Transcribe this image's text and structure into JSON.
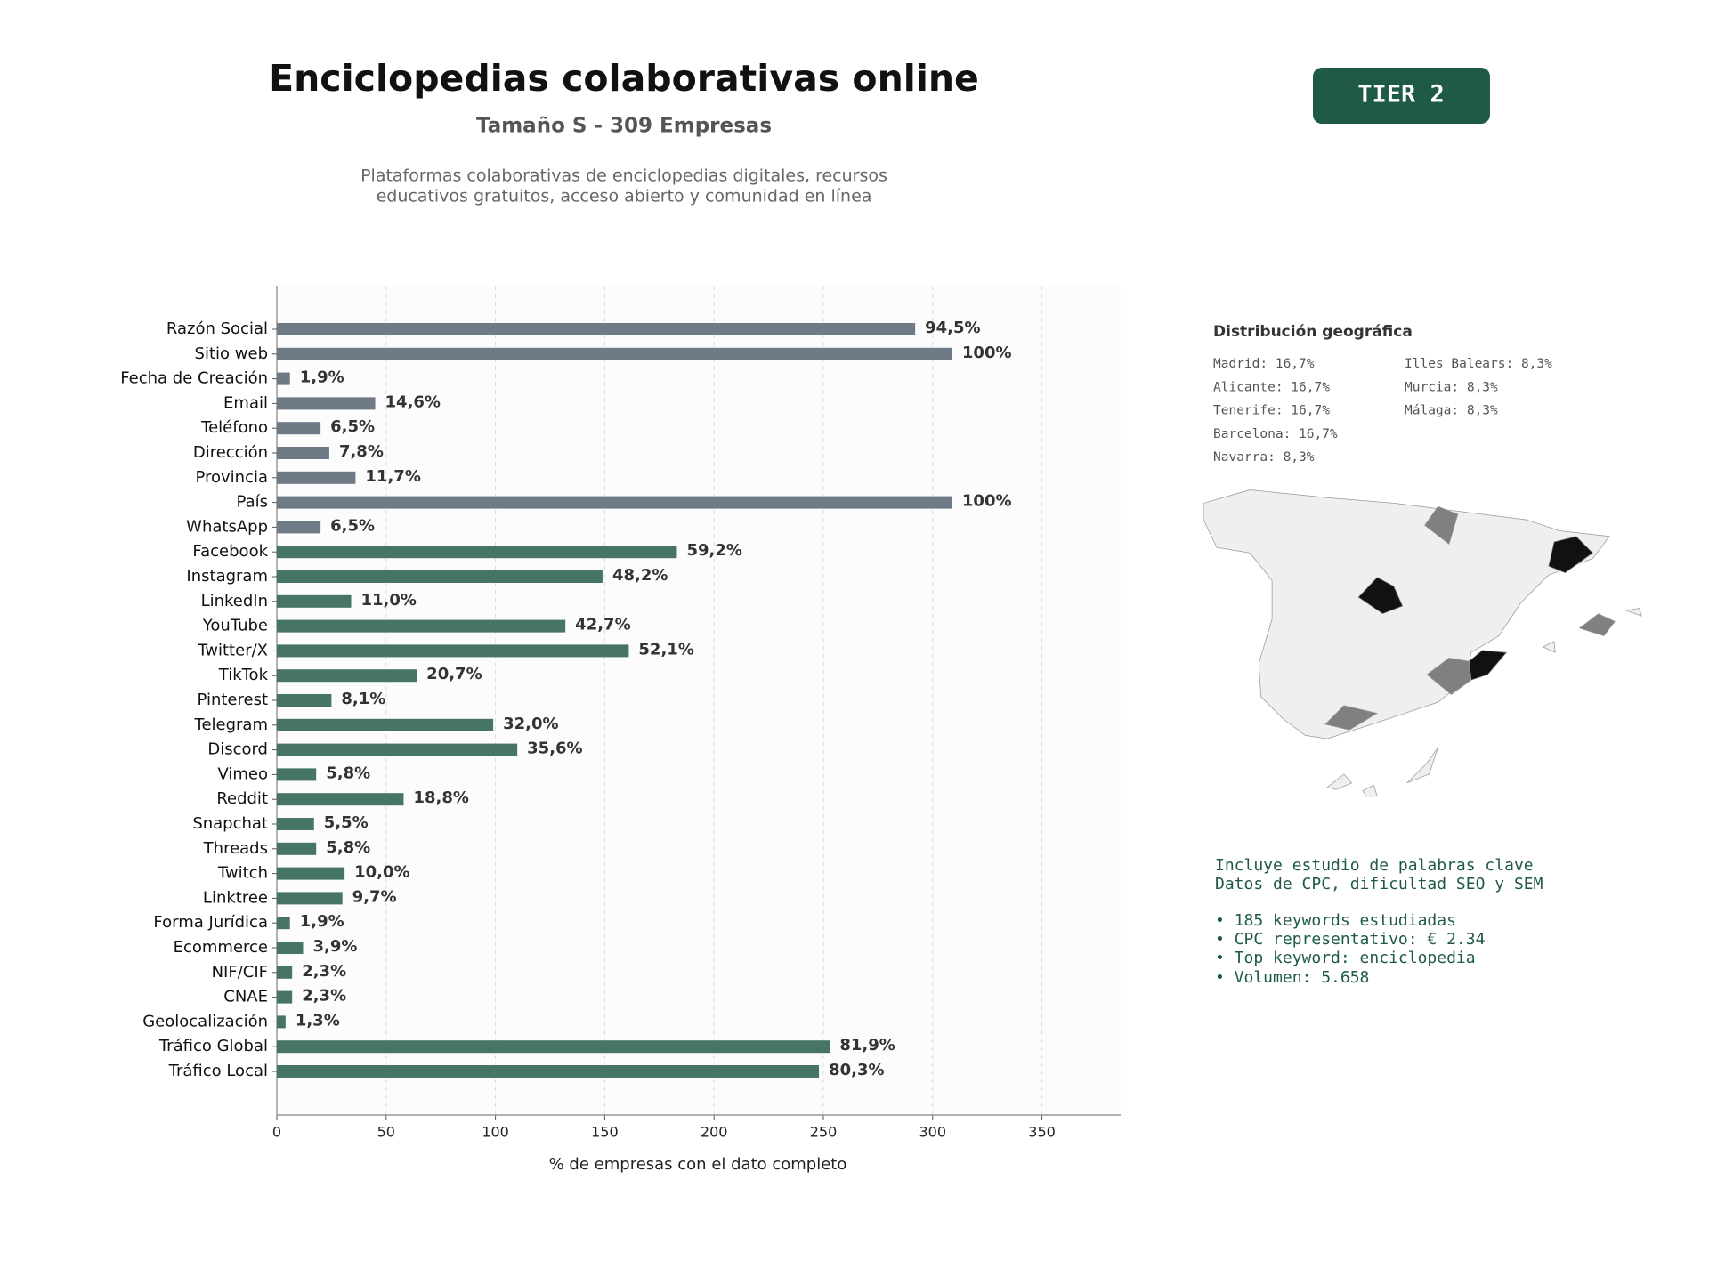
{
  "chart_data": {
    "type": "bar",
    "orientation": "horizontal",
    "title": "Enciclopedias colaborativas online",
    "subtitle": "Tamaño S - 309 Empresas",
    "description": [
      "Plataformas colaborativas de enciclopedias digitales, recursos",
      "educativos gratuitos, acceso abierto y comunidad en línea"
    ],
    "badge": "TIER 2",
    "xlabel": "% de empresas con el dato completo",
    "categories": [
      "Razón Social",
      "Sitio web",
      "Fecha de Creación",
      "Email",
      "Teléfono",
      "Dirección",
      "Provincia",
      "País",
      "WhatsApp",
      "Facebook",
      "Instagram",
      "LinkedIn",
      "YouTube",
      "Twitter/X",
      "TikTok",
      "Pinterest",
      "Telegram",
      "Discord",
      "Vimeo",
      "Reddit",
      "Snapchat",
      "Threads",
      "Twitch",
      "Linktree",
      "Forma Jurídica",
      "Ecommerce",
      "NIF/CIF",
      "CNAE",
      "Geolocalización",
      "Tráfico Global",
      "Tráfico Local"
    ],
    "values": [
      292,
      309,
      6,
      45,
      20,
      24,
      36,
      309,
      20,
      183,
      149,
      34,
      132,
      161,
      64,
      25,
      99,
      110,
      18,
      58,
      17,
      18,
      31,
      30,
      6,
      12,
      7,
      7,
      4,
      253,
      248
    ],
    "value_labels": [
      "94,5%",
      "100%",
      "1,9%",
      "14,6%",
      "6,5%",
      "7,8%",
      "11,7%",
      "100%",
      "6,5%",
      "59,2%",
      "48,2%",
      "11,0%",
      "42,7%",
      "52,1%",
      "20,7%",
      "8,1%",
      "32,0%",
      "35,6%",
      "5,8%",
      "18,8%",
      "5,5%",
      "5,8%",
      "10,0%",
      "9,7%",
      "1,9%",
      "3,9%",
      "2,3%",
      "2,3%",
      "1,3%",
      "81,9%",
      "80,3%"
    ],
    "colors": [
      "#6e7a85",
      "#6e7a85",
      "#6e7a85",
      "#6e7a85",
      "#6e7a85",
      "#6e7a85",
      "#6e7a85",
      "#6e7a85",
      "#6e7a85",
      "#467563",
      "#467563",
      "#467563",
      "#467563",
      "#467563",
      "#467563",
      "#467563",
      "#467563",
      "#467563",
      "#467563",
      "#467563",
      "#467563",
      "#467563",
      "#467563",
      "#467563",
      "#467563",
      "#467563",
      "#467563",
      "#467563",
      "#467563",
      "#467563",
      "#467563"
    ],
    "xlim": [
      0,
      386
    ],
    "xticks": [
      0,
      50,
      100,
      150,
      200,
      250,
      300,
      350
    ],
    "grid": true
  },
  "geo": {
    "title": "Distribución geográfica",
    "items": [
      "Madrid: 16,7%",
      "Alicante: 16,7%",
      "Tenerife: 16,7%",
      "Barcelona: 16,7%",
      "Navarra: 8,3%",
      "Illes Balears: 8,3%",
      "Murcia: 8,3%",
      "Málaga: 8,3%"
    ]
  },
  "keywords": {
    "lines": [
      "Incluye estudio de palabras clave",
      "Datos de CPC, dificultad SEO y SEM",
      "• 185 keywords estudiadas",
      "• CPC representativo: € 2.34",
      "• Top keyword: enciclopedia",
      "• Volumen: 5.658"
    ]
  }
}
